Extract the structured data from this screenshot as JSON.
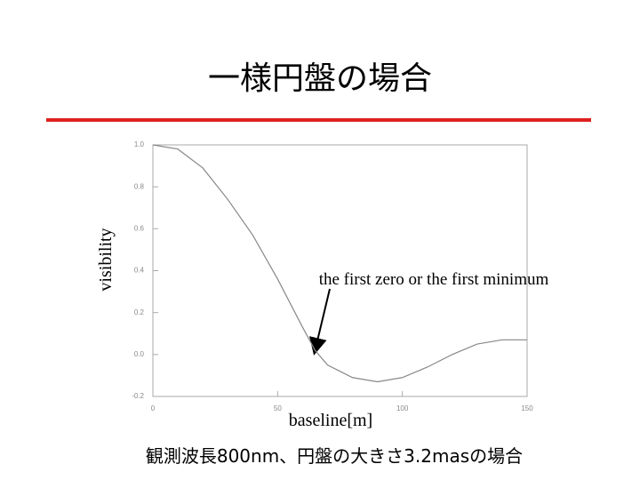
{
  "chart_data": {
    "type": "line",
    "title": "一様円盤の場合",
    "x_label": "baseline[m]",
    "y_label": "visibility",
    "annotation": "the first zero or the first minimum",
    "caption": "観測波長800nm、円盤の大きさ3.2masの場合",
    "x": [
      0,
      10,
      20,
      30,
      40,
      50,
      60,
      65,
      70,
      80,
      90,
      100,
      110,
      120,
      130,
      140,
      150
    ],
    "series": [
      {
        "color": "#888888",
        "values": [
          1.0,
          0.98,
          0.89,
          0.74,
          0.57,
          0.36,
          0.13,
          0.02,
          -0.05,
          -0.11,
          -0.13,
          -0.11,
          -0.06,
          0.0,
          0.05,
          0.07,
          0.07
        ]
      }
    ],
    "xlim": [
      0,
      150
    ],
    "xticks": [
      0,
      50,
      100,
      150
    ],
    "ylim": [
      -0.2,
      1.0
    ],
    "yticks": [
      -0.2,
      {
        "value": 0,
        "label": "0.0"
      },
      0.2,
      0.4,
      0.6,
      0.8,
      {
        "value": 1,
        "label": "1.0"
      }
    ]
  }
}
